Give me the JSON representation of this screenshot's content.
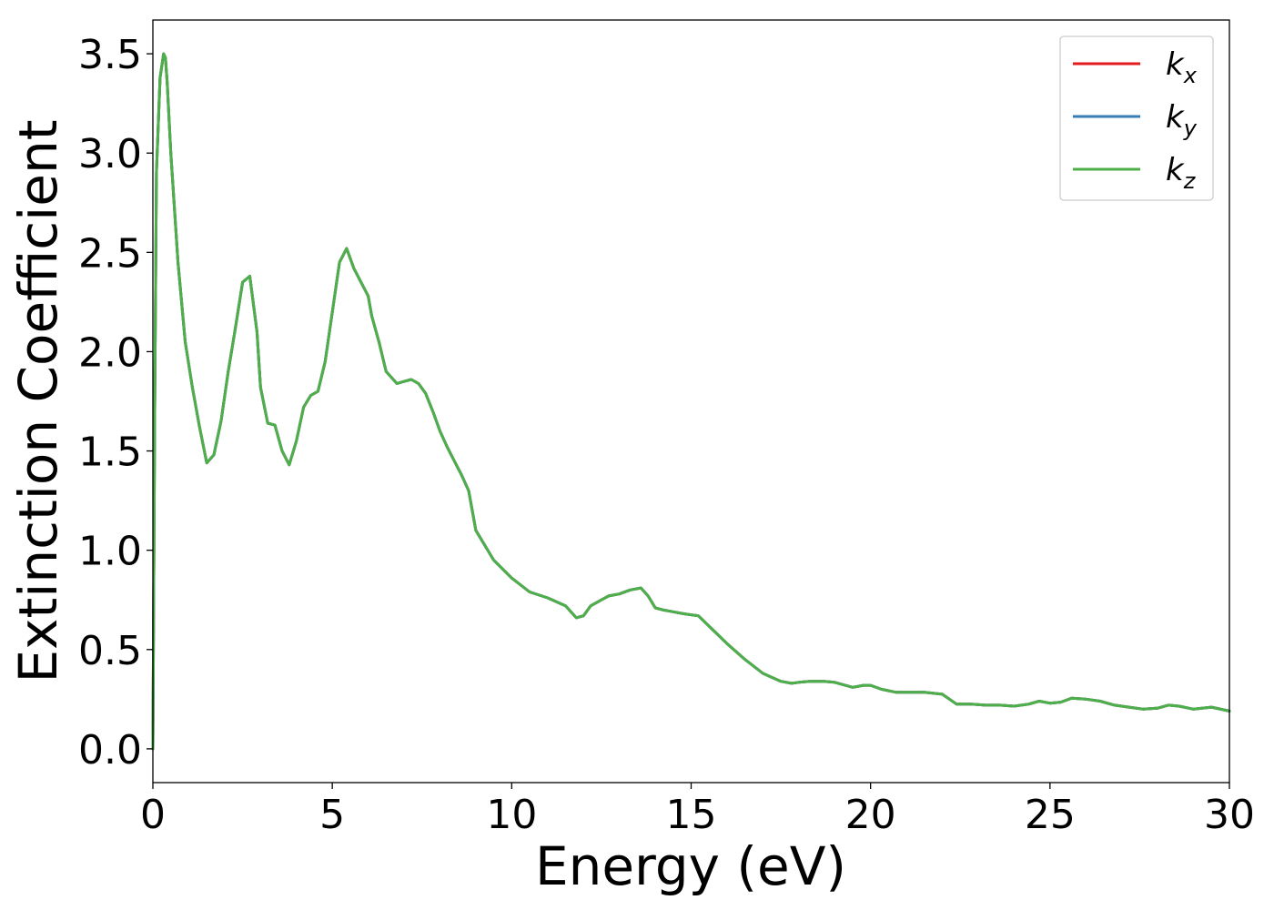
{
  "chart_data": {
    "type": "line",
    "title": "",
    "xlabel": "Energy (eV)",
    "ylabel": "Extinction Coefficient",
    "xlim": [
      0,
      30
    ],
    "ylim": [
      -0.17,
      3.67
    ],
    "xticks": [
      0,
      5,
      10,
      15,
      20,
      25,
      30
    ],
    "yticks": [
      0.0,
      0.5,
      1.0,
      1.5,
      2.0,
      2.5,
      3.0,
      3.5
    ],
    "xtick_labels": [
      "0",
      "5",
      "10",
      "15",
      "20",
      "25",
      "30"
    ],
    "ytick_labels": [
      "0.0",
      "0.5",
      "1.0",
      "1.5",
      "2.0",
      "2.5",
      "3.0",
      "3.5"
    ],
    "grid": false,
    "legend_position": "top-right",
    "x": [
      0,
      0.05,
      0.1,
      0.2,
      0.3,
      0.35,
      0.4,
      0.5,
      0.7,
      0.9,
      1.1,
      1.3,
      1.5,
      1.7,
      1.9,
      2.1,
      2.3,
      2.5,
      2.7,
      2.9,
      3.0,
      3.2,
      3.4,
      3.6,
      3.8,
      4.0,
      4.2,
      4.4,
      4.6,
      4.8,
      5.0,
      5.2,
      5.4,
      5.6,
      5.8,
      6.0,
      6.1,
      6.3,
      6.5,
      6.8,
      7.0,
      7.2,
      7.4,
      7.6,
      7.8,
      8.0,
      8.2,
      8.4,
      8.6,
      8.8,
      9.0,
      9.5,
      10.0,
      10.5,
      11.0,
      11.5,
      11.8,
      12.0,
      12.2,
      12.5,
      12.7,
      13.0,
      13.3,
      13.6,
      13.8,
      14.0,
      14.2,
      14.5,
      14.8,
      15.2,
      15.6,
      16.0,
      16.5,
      17.0,
      17.5,
      17.8,
      18.0,
      18.3,
      18.7,
      19.0,
      19.5,
      19.8,
      20.0,
      20.3,
      20.7,
      21.0,
      21.5,
      22.0,
      22.4,
      22.8,
      23.2,
      23.6,
      24.0,
      24.4,
      24.7,
      25.0,
      25.3,
      25.6,
      26.0,
      26.4,
      26.8,
      27.2,
      27.6,
      28.0,
      28.3,
      28.6,
      29.0,
      29.5,
      30.0
    ],
    "series": [
      {
        "name": "k_x",
        "label_base": "k",
        "label_sub": "x",
        "color": "#e41a1c",
        "values": [
          0.0,
          1.7,
          2.9,
          3.38,
          3.5,
          3.48,
          3.35,
          3.0,
          2.45,
          2.05,
          1.82,
          1.62,
          1.44,
          1.48,
          1.65,
          1.9,
          2.12,
          2.35,
          2.38,
          2.1,
          1.82,
          1.64,
          1.63,
          1.5,
          1.43,
          1.55,
          1.72,
          1.78,
          1.8,
          1.95,
          2.2,
          2.45,
          2.52,
          2.42,
          2.35,
          2.28,
          2.18,
          2.05,
          1.9,
          1.84,
          1.85,
          1.86,
          1.84,
          1.79,
          1.7,
          1.6,
          1.52,
          1.45,
          1.38,
          1.3,
          1.1,
          0.95,
          0.86,
          0.79,
          0.76,
          0.72,
          0.66,
          0.67,
          0.72,
          0.75,
          0.77,
          0.78,
          0.8,
          0.81,
          0.77,
          0.71,
          0.7,
          0.69,
          0.68,
          0.67,
          0.6,
          0.53,
          0.45,
          0.38,
          0.34,
          0.33,
          0.335,
          0.34,
          0.34,
          0.335,
          0.31,
          0.32,
          0.32,
          0.3,
          0.285,
          0.285,
          0.285,
          0.275,
          0.225,
          0.225,
          0.22,
          0.22,
          0.215,
          0.225,
          0.24,
          0.23,
          0.235,
          0.255,
          0.25,
          0.24,
          0.22,
          0.21,
          0.2,
          0.205,
          0.22,
          0.215,
          0.2,
          0.21,
          0.19
        ]
      },
      {
        "name": "k_y",
        "label_base": "k",
        "label_sub": "y",
        "color": "#377eb8",
        "values": [
          0.0,
          1.7,
          2.9,
          3.38,
          3.5,
          3.48,
          3.35,
          3.0,
          2.45,
          2.05,
          1.82,
          1.62,
          1.44,
          1.48,
          1.65,
          1.9,
          2.12,
          2.35,
          2.38,
          2.1,
          1.82,
          1.64,
          1.63,
          1.5,
          1.43,
          1.55,
          1.72,
          1.78,
          1.8,
          1.95,
          2.2,
          2.45,
          2.52,
          2.42,
          2.35,
          2.28,
          2.18,
          2.05,
          1.9,
          1.84,
          1.85,
          1.86,
          1.84,
          1.79,
          1.7,
          1.6,
          1.52,
          1.45,
          1.38,
          1.3,
          1.1,
          0.95,
          0.86,
          0.79,
          0.76,
          0.72,
          0.66,
          0.67,
          0.72,
          0.75,
          0.77,
          0.78,
          0.8,
          0.81,
          0.77,
          0.71,
          0.7,
          0.69,
          0.68,
          0.67,
          0.6,
          0.53,
          0.45,
          0.38,
          0.34,
          0.33,
          0.335,
          0.34,
          0.34,
          0.335,
          0.31,
          0.32,
          0.32,
          0.3,
          0.285,
          0.285,
          0.285,
          0.275,
          0.225,
          0.225,
          0.22,
          0.22,
          0.215,
          0.225,
          0.24,
          0.23,
          0.235,
          0.255,
          0.25,
          0.24,
          0.22,
          0.21,
          0.2,
          0.205,
          0.22,
          0.215,
          0.2,
          0.21,
          0.19
        ]
      },
      {
        "name": "k_z",
        "label_base": "k",
        "label_sub": "z",
        "color": "#4daf4a",
        "values": [
          0.0,
          1.7,
          2.9,
          3.38,
          3.5,
          3.48,
          3.35,
          3.0,
          2.45,
          2.05,
          1.82,
          1.62,
          1.44,
          1.48,
          1.65,
          1.9,
          2.12,
          2.35,
          2.38,
          2.1,
          1.82,
          1.64,
          1.63,
          1.5,
          1.43,
          1.55,
          1.72,
          1.78,
          1.8,
          1.95,
          2.2,
          2.45,
          2.52,
          2.42,
          2.35,
          2.28,
          2.18,
          2.05,
          1.9,
          1.84,
          1.85,
          1.86,
          1.84,
          1.79,
          1.7,
          1.6,
          1.52,
          1.45,
          1.38,
          1.3,
          1.1,
          0.95,
          0.86,
          0.79,
          0.76,
          0.72,
          0.66,
          0.67,
          0.72,
          0.75,
          0.77,
          0.78,
          0.8,
          0.81,
          0.77,
          0.71,
          0.7,
          0.69,
          0.68,
          0.67,
          0.6,
          0.53,
          0.45,
          0.38,
          0.34,
          0.33,
          0.335,
          0.34,
          0.34,
          0.335,
          0.31,
          0.32,
          0.32,
          0.3,
          0.285,
          0.285,
          0.285,
          0.275,
          0.225,
          0.225,
          0.22,
          0.22,
          0.215,
          0.225,
          0.24,
          0.23,
          0.235,
          0.255,
          0.25,
          0.24,
          0.22,
          0.21,
          0.2,
          0.205,
          0.22,
          0.215,
          0.2,
          0.21,
          0.19
        ]
      }
    ]
  }
}
